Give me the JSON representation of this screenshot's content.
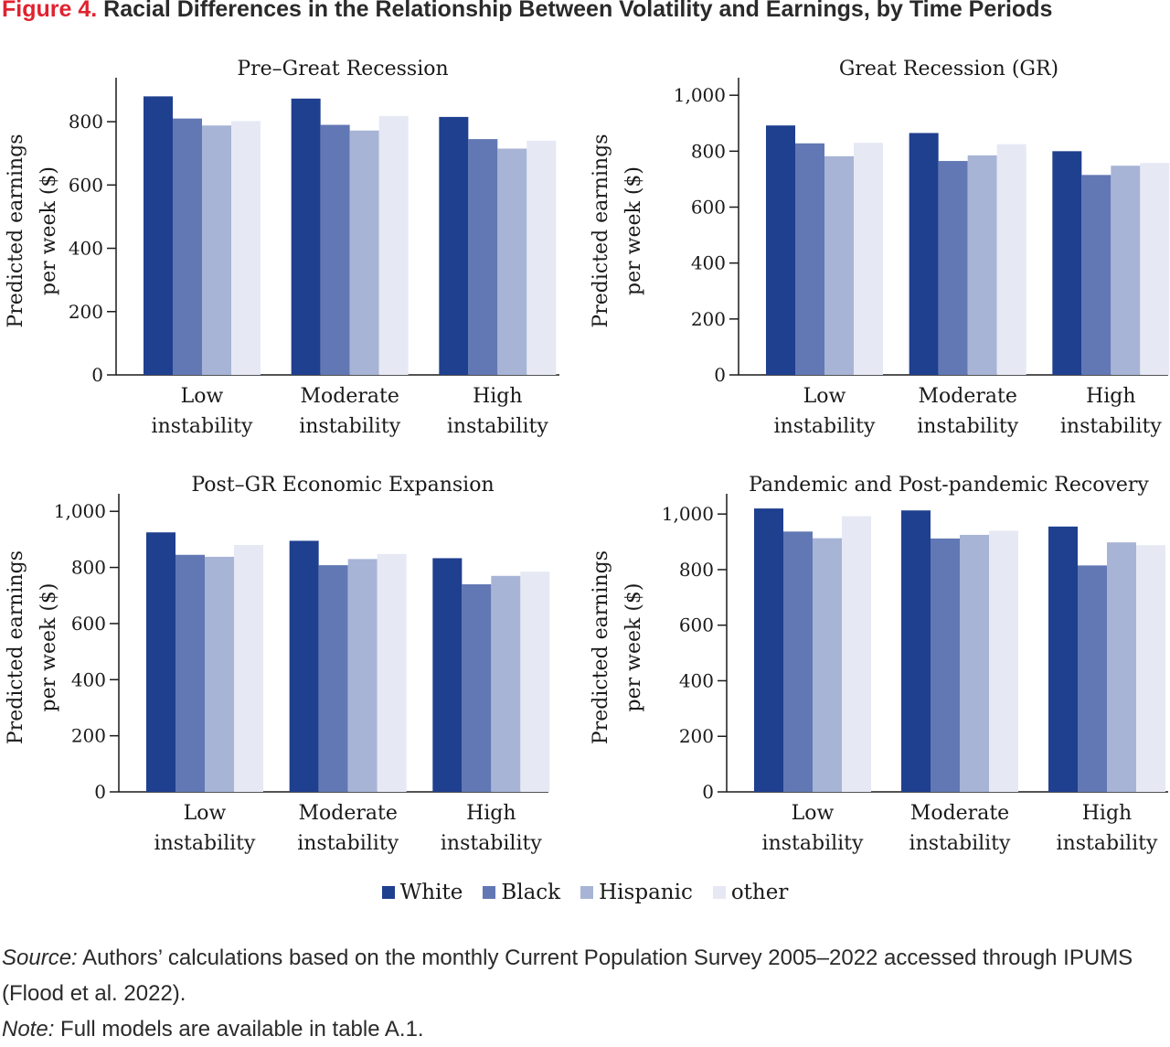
{
  "figure": {
    "label": "Figure 4.",
    "title": "Racial Differences in the Relationship Between Volatility and Earnings, by Time Periods"
  },
  "colors": {
    "White": "#1f3f8f",
    "Black": "#6278b4",
    "Hispanic": "#a7b4d6",
    "other": "#e6e9f4"
  },
  "chart_data": [
    {
      "type": "bar",
      "title": "Pre–Great Recession",
      "ylabel": [
        "Predicted earnings",
        "per week ($)"
      ],
      "categories": [
        [
          "Low",
          "instability"
        ],
        [
          "Moderate",
          "instability"
        ],
        [
          "High",
          "instability"
        ]
      ],
      "ylim": [
        0,
        910
      ],
      "yticks": [
        0,
        200,
        400,
        600,
        800
      ],
      "ytick_labels": [
        "0",
        "200",
        "400",
        "600",
        "800"
      ],
      "series": [
        {
          "name": "White",
          "values": [
            880,
            873,
            815
          ]
        },
        {
          "name": "Black",
          "values": [
            810,
            790,
            745
          ]
        },
        {
          "name": "Hispanic",
          "values": [
            788,
            772,
            715
          ]
        },
        {
          "name": "other",
          "values": [
            802,
            818,
            740
          ]
        }
      ]
    },
    {
      "type": "bar",
      "title": "Great Recession (GR)",
      "ylabel": [
        "Predicted earnings",
        "per week ($)"
      ],
      "categories": [
        [
          "Low",
          "instability"
        ],
        [
          "Moderate",
          "instability"
        ],
        [
          "High",
          "instability"
        ]
      ],
      "ylim": [
        0,
        1030
      ],
      "yticks": [
        0,
        200,
        400,
        600,
        800,
        1000
      ],
      "ytick_labels": [
        "0",
        "200",
        "400",
        "600",
        "800",
        "1,000"
      ],
      "series": [
        {
          "name": "White",
          "values": [
            892,
            865,
            800
          ]
        },
        {
          "name": "Black",
          "values": [
            828,
            765,
            715
          ]
        },
        {
          "name": "Hispanic",
          "values": [
            782,
            785,
            748
          ]
        },
        {
          "name": "other",
          "values": [
            830,
            825,
            758
          ]
        }
      ]
    },
    {
      "type": "bar",
      "title": "Post–GR Economic Expansion",
      "ylabel": [
        "Predicted earnings",
        "per week ($)"
      ],
      "categories": [
        [
          "Low",
          "instability"
        ],
        [
          "Moderate",
          "instability"
        ],
        [
          "High",
          "instability"
        ]
      ],
      "ylim": [
        0,
        1030
      ],
      "yticks": [
        0,
        200,
        400,
        600,
        800,
        1000
      ],
      "ytick_labels": [
        "0",
        "200",
        "400",
        "600",
        "800",
        "1,000"
      ],
      "series": [
        {
          "name": "White",
          "values": [
            925,
            895,
            833
          ]
        },
        {
          "name": "Black",
          "values": [
            845,
            808,
            740
          ]
        },
        {
          "name": "Hispanic",
          "values": [
            838,
            830,
            770
          ]
        },
        {
          "name": "other",
          "values": [
            880,
            848,
            785
          ]
        }
      ]
    },
    {
      "type": "bar",
      "title": "Pandemic and Post-pandemic Recovery",
      "ylabel": [
        "Predicted earnings",
        "per week ($)"
      ],
      "categories": [
        [
          "Low",
          "instability"
        ],
        [
          "Moderate",
          "instability"
        ],
        [
          "High",
          "instability"
        ]
      ],
      "ylim": [
        0,
        1040
      ],
      "yticks": [
        0,
        200,
        400,
        600,
        800,
        1000
      ],
      "ytick_labels": [
        "0",
        "200",
        "400",
        "600",
        "800",
        "1,000"
      ],
      "series": [
        {
          "name": "White",
          "values": [
            1020,
            1013,
            955
          ]
        },
        {
          "name": "Black",
          "values": [
            937,
            912,
            815
          ]
        },
        {
          "name": "Hispanic",
          "values": [
            913,
            925,
            898
          ]
        },
        {
          "name": "other",
          "values": [
            992,
            940,
            888
          ]
        }
      ]
    }
  ],
  "legend": [
    "White",
    "Black",
    "Hispanic",
    "other"
  ],
  "source": {
    "label": "Source:",
    "text": " Authors’ calculations based on the monthly Current Population Survey 2005–2022 accessed through IPUMS (Flood et al. 2022)."
  },
  "note": {
    "label": "Note:",
    "text": " Full models are available in table A.1."
  }
}
